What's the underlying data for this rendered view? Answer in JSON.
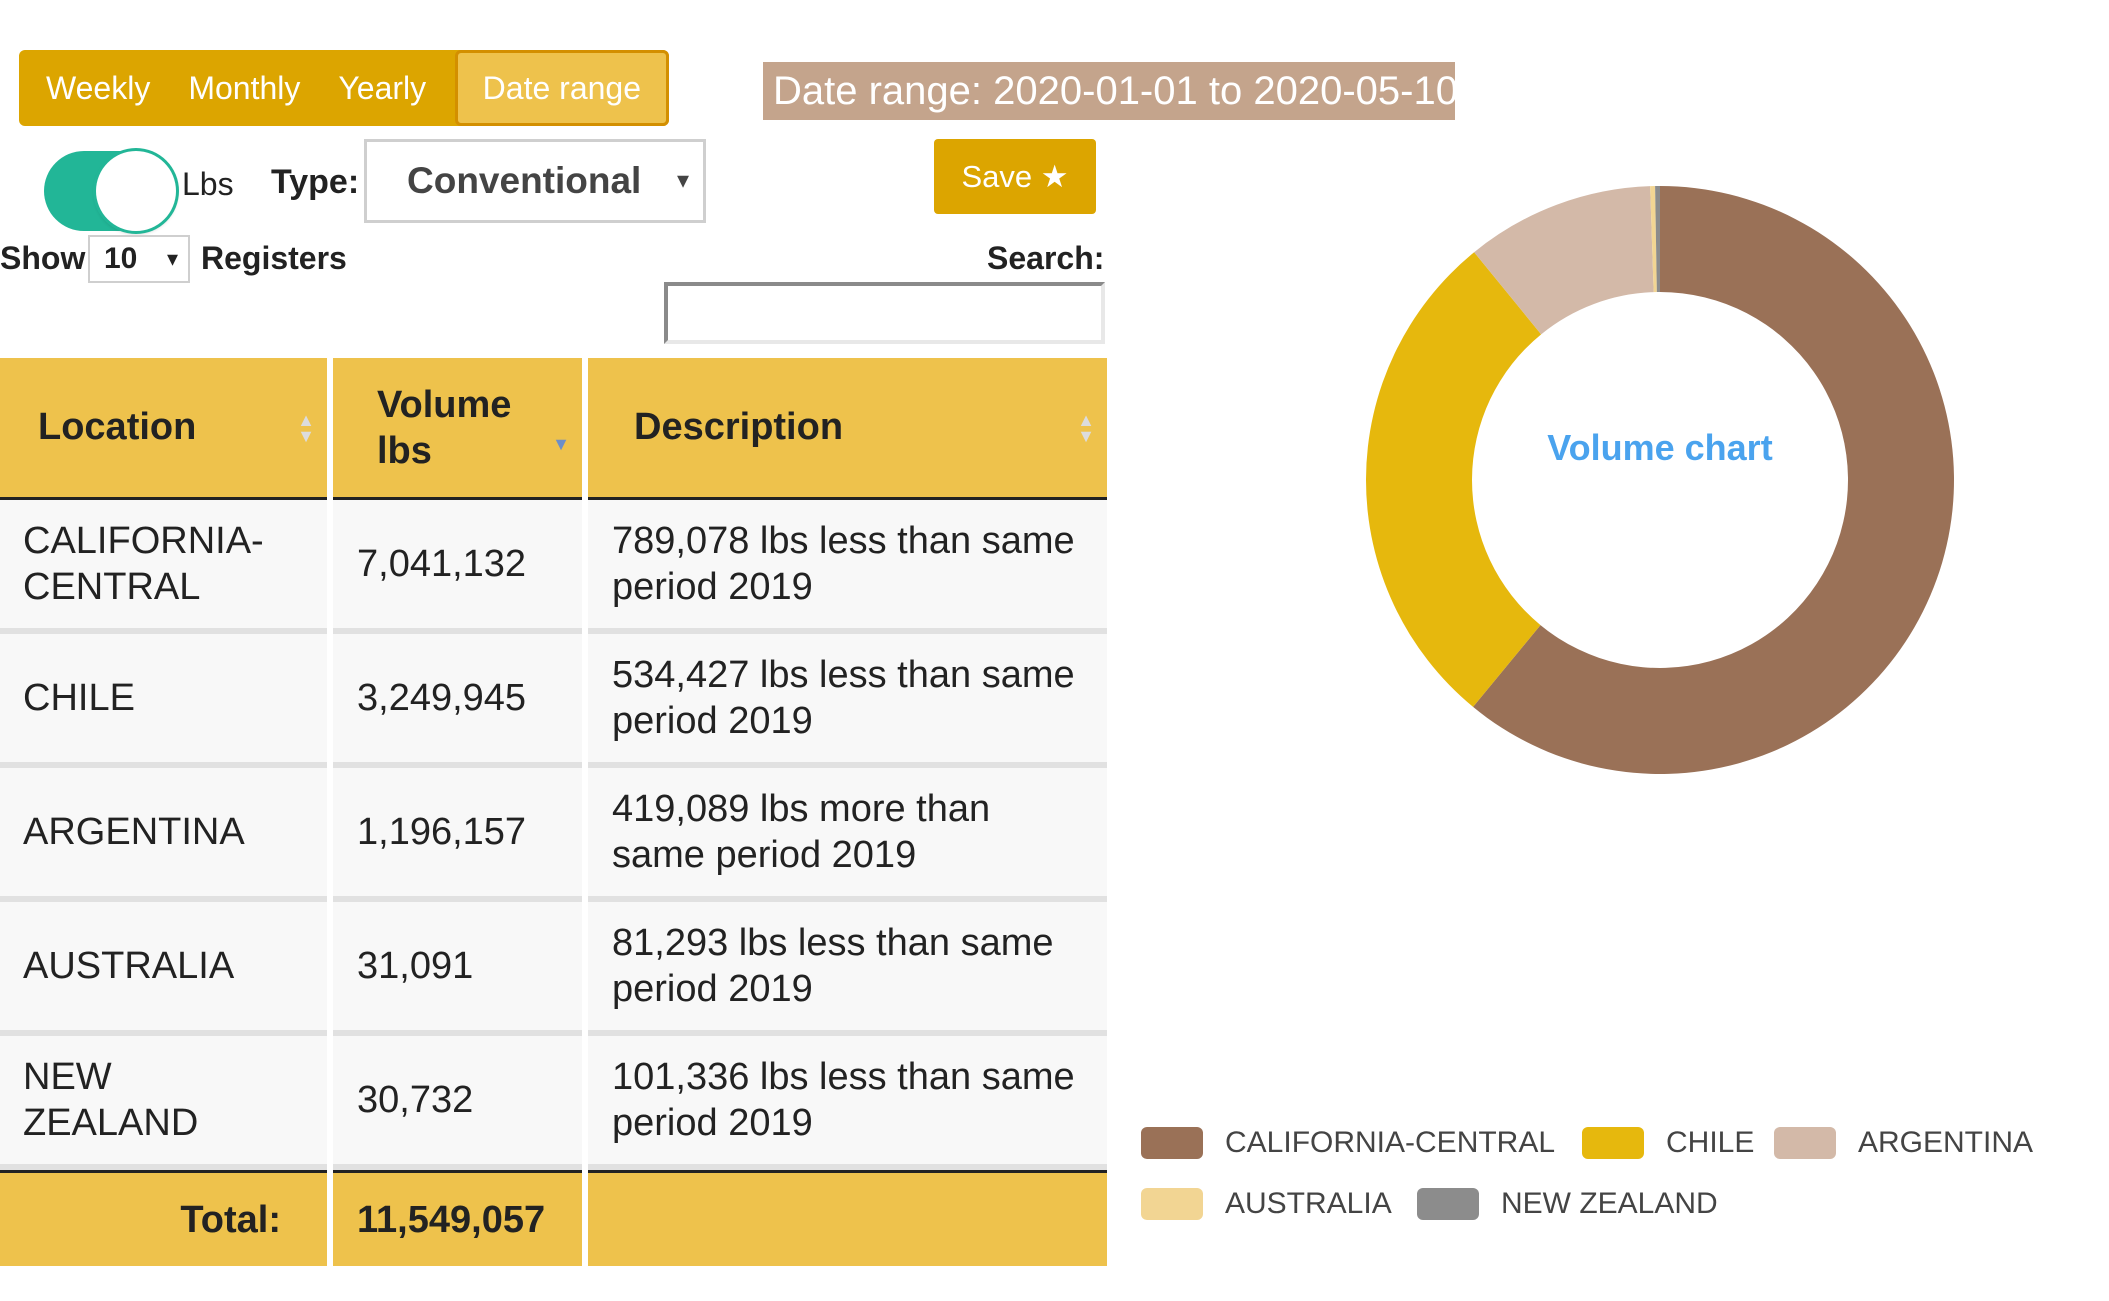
{
  "period_tabs": [
    {
      "label": "Weekly",
      "active": false
    },
    {
      "label": "Monthly",
      "active": false
    },
    {
      "label": "Yearly",
      "active": false
    },
    {
      "label": "Date range",
      "active": true
    }
  ],
  "date_range_label": "Date range: 2020-01-01 to 2020-05-10",
  "unit_toggle": {
    "label": "Lbs",
    "on": true
  },
  "type_filter": {
    "label": "Type:",
    "value": "Conventional",
    "arrow": "▾"
  },
  "save_button": {
    "label": "Save ★"
  },
  "show": {
    "label": "Show",
    "value": "10",
    "arrow": "▾",
    "suffix": "Registers"
  },
  "search": {
    "label": "Search:",
    "value": ""
  },
  "table": {
    "headers": [
      "Location",
      "Volume lbs",
      "Description"
    ],
    "rows": [
      {
        "location": "CALIFORNIA-CENTRAL",
        "volume": "7,041,132",
        "description": "789,078 lbs less than same period 2019"
      },
      {
        "location": "CHILE",
        "volume": "3,249,945",
        "description": "534,427 lbs less than same period 2019"
      },
      {
        "location": "ARGENTINA",
        "volume": "1,196,157",
        "description": "419,089 lbs more than same period 2019"
      },
      {
        "location": "AUSTRALIA",
        "volume": "31,091",
        "description": "81,293 lbs less than same period 2019"
      },
      {
        "location": "NEW ZEALAND",
        "volume": "30,732",
        "description": "101,336 lbs less than same period 2019"
      }
    ],
    "footer": {
      "label": "Total:",
      "total": "11,549,057"
    }
  },
  "colors": {
    "accent": "#dca500",
    "header": "#eec24c",
    "toggle": "#22b697",
    "range_label_bg": "#c4a48c",
    "chart_title": "#4aa3ee"
  },
  "chart_data": {
    "type": "pie",
    "title": "Volume chart",
    "categories": [
      "CALIFORNIA-CENTRAL",
      "CHILE",
      "ARGENTINA",
      "AUSTRALIA",
      "NEW ZEALAND"
    ],
    "values": [
      7041132,
      3249945,
      1196157,
      31091,
      30732
    ],
    "colors": [
      "#9a7157",
      "#e6b80d",
      "#d3b9a8",
      "#f2d593",
      "#8c8c8c"
    ],
    "legend_position": "bottom"
  }
}
